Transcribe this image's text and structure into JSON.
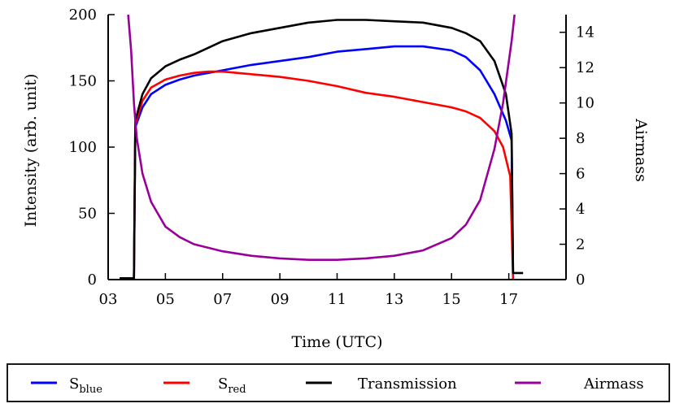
{
  "chart_data": {
    "type": "line",
    "xlabel": "Time (UTC)",
    "ylabel": "Intensity (arb. unit)",
    "y2label": "Airmass",
    "xlim": [
      3,
      19
    ],
    "ylim": [
      0,
      200
    ],
    "y2lim": [
      0,
      15
    ],
    "x_ticks": [
      "03",
      "05",
      "07",
      "09",
      "11",
      "13",
      "15",
      "17"
    ],
    "x_tick_values": [
      3,
      5,
      7,
      9,
      11,
      13,
      15,
      17
    ],
    "y_ticks": [
      0,
      50,
      100,
      150,
      200
    ],
    "y2_ticks": [
      0,
      2,
      4,
      6,
      8,
      10,
      12,
      14
    ],
    "grid": false,
    "legend_placement": "below",
    "series": [
      {
        "name": "S",
        "sub": "blue",
        "color": "#0000ff",
        "axis": "left",
        "points": [
          [
            3.4,
            1
          ],
          [
            3.9,
            1
          ],
          [
            3.95,
            115
          ],
          [
            4.2,
            130
          ],
          [
            4.5,
            140
          ],
          [
            5,
            147
          ],
          [
            5.5,
            151
          ],
          [
            6,
            154
          ],
          [
            7,
            158
          ],
          [
            8,
            162
          ],
          [
            9,
            165
          ],
          [
            10,
            168
          ],
          [
            11,
            172
          ],
          [
            12,
            174
          ],
          [
            13,
            176
          ],
          [
            13.5,
            176
          ],
          [
            14,
            176
          ],
          [
            15,
            173
          ],
          [
            15.5,
            168
          ],
          [
            16,
            158
          ],
          [
            16.5,
            140
          ],
          [
            16.9,
            120
          ],
          [
            17.1,
            105
          ],
          [
            17.15,
            0
          ]
        ]
      },
      {
        "name": "S",
        "sub": "red",
        "color": "#ff0000",
        "axis": "left",
        "points": [
          [
            3.9,
            1
          ],
          [
            3.95,
            117
          ],
          [
            4.2,
            135
          ],
          [
            4.5,
            145
          ],
          [
            5,
            151
          ],
          [
            5.5,
            154
          ],
          [
            6,
            156
          ],
          [
            6.5,
            157
          ],
          [
            7,
            157
          ],
          [
            8,
            155
          ],
          [
            9,
            153
          ],
          [
            10,
            150
          ],
          [
            11,
            146
          ],
          [
            12,
            141
          ],
          [
            13,
            138
          ],
          [
            14,
            134
          ],
          [
            15,
            130
          ],
          [
            15.5,
            127
          ],
          [
            16,
            122
          ],
          [
            16.5,
            112
          ],
          [
            16.8,
            100
          ],
          [
            17.05,
            78
          ],
          [
            17.15,
            0
          ]
        ]
      },
      {
        "name": "Transmission",
        "color": "#000000",
        "axis": "left",
        "points": [
          [
            3.4,
            1
          ],
          [
            3.9,
            1
          ],
          [
            3.95,
            120
          ],
          [
            4.2,
            140
          ],
          [
            4.5,
            152
          ],
          [
            5,
            161
          ],
          [
            5.5,
            166
          ],
          [
            6,
            170
          ],
          [
            7,
            180
          ],
          [
            8,
            186
          ],
          [
            9,
            190
          ],
          [
            10,
            194
          ],
          [
            11,
            196
          ],
          [
            12,
            196
          ],
          [
            13,
            195
          ],
          [
            14,
            194
          ],
          [
            15,
            190
          ],
          [
            15.5,
            186
          ],
          [
            16,
            180
          ],
          [
            16.5,
            165
          ],
          [
            16.9,
            140
          ],
          [
            17.1,
            110
          ],
          [
            17.15,
            5
          ],
          [
            17.5,
            5
          ]
        ]
      },
      {
        "name": "Airmass",
        "color": "#990099",
        "axis": "right",
        "points": [
          [
            3.7,
            15
          ],
          [
            3.8,
            13
          ],
          [
            3.9,
            10
          ],
          [
            4.0,
            8
          ],
          [
            4.2,
            6
          ],
          [
            4.5,
            4.4
          ],
          [
            5,
            3
          ],
          [
            5.5,
            2.4
          ],
          [
            6,
            2
          ],
          [
            7,
            1.6
          ],
          [
            8,
            1.35
          ],
          [
            9,
            1.2
          ],
          [
            10,
            1.12
          ],
          [
            11,
            1.12
          ],
          [
            12,
            1.2
          ],
          [
            13,
            1.35
          ],
          [
            14,
            1.65
          ],
          [
            15,
            2.35
          ],
          [
            15.5,
            3.1
          ],
          [
            16,
            4.5
          ],
          [
            16.5,
            7.4
          ],
          [
            16.8,
            10
          ],
          [
            17.1,
            13.5
          ],
          [
            17.2,
            15
          ]
        ]
      }
    ]
  }
}
